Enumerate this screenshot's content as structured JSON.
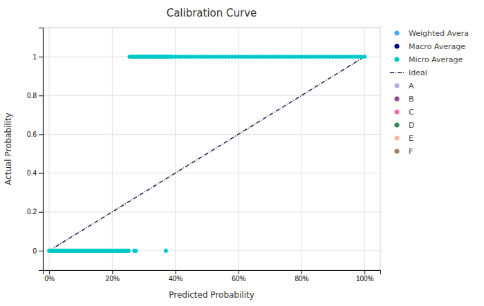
{
  "chart_data": {
    "type": "scatter",
    "title": "Calibration Curve",
    "x_label": "Predicted Probability",
    "y_label": "Actual Probability",
    "xlim": [
      -0.02,
      1.05
    ],
    "ylim": [
      -0.1,
      1.15
    ],
    "xticks": [
      {
        "value": 0.0,
        "label": "0%"
      },
      {
        "value": 0.2,
        "label": "20%"
      },
      {
        "value": 0.4,
        "label": "40%"
      },
      {
        "value": 0.6,
        "label": "60%"
      },
      {
        "value": 0.8,
        "label": "80%"
      },
      {
        "value": 1.0,
        "label": "100%"
      }
    ],
    "yticks": [
      0,
      0.2,
      0.4,
      0.6,
      0.8,
      1
    ],
    "grid": true,
    "legend": "right",
    "series": [
      {
        "name": "Weighted Avera",
        "type": "scatter",
        "marker": "circle",
        "color": "#4da6ff",
        "x": [],
        "values": []
      },
      {
        "name": "Macro Average",
        "type": "scatter",
        "marker": "circle",
        "color": "#00008b",
        "x": [],
        "values": []
      },
      {
        "name": "Micro Average",
        "type": "scatter",
        "marker": "circle",
        "color": "#00c8c8",
        "x": [
          0.0,
          0.003,
          0.006,
          0.009,
          0.012,
          0.015,
          0.018,
          0.021,
          0.024,
          0.027,
          0.03,
          0.033,
          0.036,
          0.039,
          0.042,
          0.045,
          0.048,
          0.051,
          0.054,
          0.057,
          0.06,
          0.063,
          0.066,
          0.069,
          0.072,
          0.075,
          0.078,
          0.081,
          0.084,
          0.087,
          0.09,
          0.093,
          0.096,
          0.099,
          0.102,
          0.105,
          0.108,
          0.111,
          0.114,
          0.117,
          0.12,
          0.123,
          0.126,
          0.129,
          0.132,
          0.135,
          0.138,
          0.141,
          0.144,
          0.147,
          0.15,
          0.153,
          0.156,
          0.159,
          0.162,
          0.165,
          0.168,
          0.171,
          0.174,
          0.177,
          0.18,
          0.183,
          0.186,
          0.189,
          0.192,
          0.195,
          0.198,
          0.201,
          0.204,
          0.207,
          0.21,
          0.213,
          0.216,
          0.219,
          0.222,
          0.225,
          0.228,
          0.231,
          0.234,
          0.237,
          0.24,
          0.243,
          0.246,
          0.249,
          0.252,
          0.27,
          0.275,
          0.37,
          0.255,
          0.258,
          0.261,
          0.264,
          0.267,
          0.27,
          0.273,
          0.276,
          0.279,
          0.282,
          0.285,
          0.288,
          0.291,
          0.294,
          0.297,
          0.3,
          0.303,
          0.306,
          0.309,
          0.312,
          0.315,
          0.318,
          0.321,
          0.324,
          0.327,
          0.33,
          0.333,
          0.336,
          0.339,
          0.342,
          0.345,
          0.348,
          0.351,
          0.354,
          0.357,
          0.36,
          0.363,
          0.366,
          0.369,
          0.372,
          0.375,
          0.378,
          0.381,
          0.384,
          0.387,
          0.39,
          0.4,
          0.41,
          0.42,
          0.43,
          0.44,
          0.45,
          0.46,
          0.47,
          0.48,
          0.49,
          0.5,
          0.51,
          0.52,
          0.53,
          0.54,
          0.55,
          0.56,
          0.57,
          0.58,
          0.59,
          0.6,
          0.61,
          0.62,
          0.63,
          0.64,
          0.65,
          0.66,
          0.67,
          0.68,
          0.69,
          0.7,
          0.71,
          0.72,
          0.73,
          0.74,
          0.75,
          0.76,
          0.77,
          0.78,
          0.79,
          0.8,
          0.81,
          0.82,
          0.83,
          0.84,
          0.85,
          0.86,
          0.87,
          0.88,
          0.89,
          0.9,
          0.91,
          0.92,
          0.93,
          0.94,
          0.95,
          0.96,
          0.97,
          0.98,
          0.99,
          1.0
        ],
        "values": [
          0,
          0,
          0,
          0,
          0,
          0,
          0,
          0,
          0,
          0,
          0,
          0,
          0,
          0,
          0,
          0,
          0,
          0,
          0,
          0,
          0,
          0,
          0,
          0,
          0,
          0,
          0,
          0,
          0,
          0,
          0,
          0,
          0,
          0,
          0,
          0,
          0,
          0,
          0,
          0,
          0,
          0,
          0,
          0,
          0,
          0,
          0,
          0,
          0,
          0,
          0,
          0,
          0,
          0,
          0,
          0,
          0,
          0,
          0,
          0,
          0,
          0,
          0,
          0,
          0,
          0,
          0,
          0,
          0,
          0,
          0,
          0,
          0,
          0,
          0,
          0,
          0,
          0,
          0,
          0,
          0,
          0,
          0,
          0,
          0,
          0,
          0,
          0,
          1,
          1,
          1,
          1,
          1,
          1,
          1,
          1,
          1,
          1,
          1,
          1,
          1,
          1,
          1,
          1,
          1,
          1,
          1,
          1,
          1,
          1,
          1,
          1,
          1,
          1,
          1,
          1,
          1,
          1,
          1,
          1,
          1,
          1,
          1,
          1,
          1,
          1,
          1,
          1,
          1,
          1,
          1,
          1,
          1,
          1,
          1,
          1,
          1,
          1,
          1,
          1,
          1,
          1,
          1,
          1,
          1,
          1,
          1,
          1,
          1,
          1,
          1,
          1,
          1,
          1,
          1,
          1,
          1,
          1,
          1,
          1,
          1,
          1,
          1,
          1,
          1,
          1,
          1,
          1,
          1,
          1,
          1,
          1,
          1,
          1,
          1,
          1,
          1,
          1,
          1,
          1,
          1,
          1,
          1,
          1,
          1,
          1,
          1,
          1,
          1,
          1,
          1,
          1,
          1,
          1,
          1
        ]
      },
      {
        "name": "Ideal",
        "type": "line",
        "line_style": "dash-dot",
        "color": "#1a1a4e",
        "x": [
          0,
          1
        ],
        "values": [
          0,
          1
        ]
      },
      {
        "name": "A",
        "type": "scatter",
        "marker": "circle",
        "color": "#b8a9e8",
        "x": [],
        "values": []
      },
      {
        "name": "B",
        "type": "scatter",
        "marker": "circle",
        "color": "#8b4f8b",
        "x": [],
        "values": []
      },
      {
        "name": "C",
        "type": "scatter",
        "marker": "circle",
        "color": "#ff69b4",
        "x": [],
        "values": []
      },
      {
        "name": "D",
        "type": "scatter",
        "marker": "circle",
        "color": "#2e8b57",
        "x": [],
        "values": []
      },
      {
        "name": "E",
        "type": "scatter",
        "marker": "circle",
        "color": "#ffb6a0",
        "x": [],
        "values": []
      },
      {
        "name": "F",
        "type": "scatter",
        "marker": "circle",
        "color": "#a08060",
        "x": [],
        "values": []
      }
    ]
  }
}
